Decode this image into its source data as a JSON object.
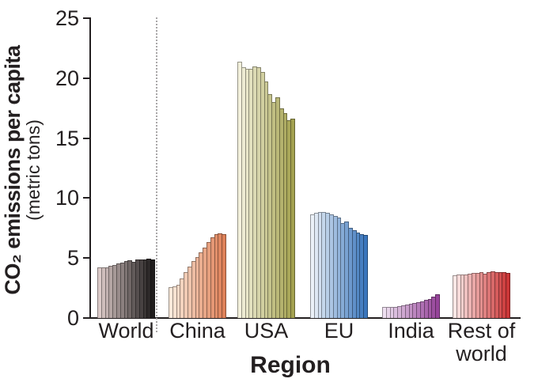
{
  "y_axis": {
    "title_line1": "CO₂ emissions per capita",
    "title_line2": "(metric tons)",
    "ticks": [
      0,
      5,
      10,
      15,
      20,
      25
    ]
  },
  "x_axis": {
    "title": "Region"
  },
  "chart_data": {
    "type": "bar",
    "title": "",
    "xlabel": "Region",
    "ylabel": "CO₂ emissions per capita (metric tons)",
    "ylim": [
      0,
      25
    ],
    "y_ticks": [
      0,
      5,
      10,
      15,
      20,
      25
    ],
    "grid": false,
    "legend": false,
    "bars_per_group": 15,
    "separator": {
      "style": "vertical-dotted-line",
      "position": "between World and China groups"
    },
    "bar_style": "each group is a sequence of thin yearly bars shaded light-to-dark left-to-right",
    "groups": [
      {
        "label": "World",
        "color_start": "#dccac8",
        "color_end": "#1f1d1d",
        "values": [
          4.2,
          4.2,
          4.25,
          4.35,
          4.45,
          4.55,
          4.65,
          4.75,
          4.8,
          4.7,
          4.85,
          4.9,
          4.9,
          4.95,
          4.85
        ]
      },
      {
        "label": "China",
        "color_start": "#f9e9da",
        "color_end": "#de8159",
        "values": [
          2.55,
          2.65,
          2.8,
          3.3,
          3.8,
          4.3,
          4.75,
          5.1,
          5.45,
          5.85,
          6.3,
          6.7,
          7.0,
          7.05,
          7.0
        ]
      },
      {
        "label": "USA",
        "color_start": "#f3f1dc",
        "color_end": "#a3a150",
        "values": [
          21.4,
          20.9,
          20.8,
          20.8,
          21.0,
          20.9,
          20.5,
          19.7,
          18.7,
          18.0,
          18.4,
          17.5,
          17.1,
          16.5,
          16.6
        ]
      },
      {
        "label": "EU",
        "color_start": "#ebf1f8",
        "color_end": "#3a76bd",
        "values": [
          8.65,
          8.8,
          8.85,
          8.85,
          8.8,
          8.65,
          8.5,
          8.4,
          7.9,
          8.05,
          7.5,
          7.3,
          7.1,
          7.0,
          6.9
        ]
      },
      {
        "label": "India",
        "color_start": "#eedff0",
        "color_end": "#96449a",
        "values": [
          0.9,
          0.9,
          0.92,
          0.95,
          1.0,
          1.05,
          1.1,
          1.2,
          1.25,
          1.35,
          1.4,
          1.5,
          1.6,
          1.75,
          2.0
        ]
      },
      {
        "label": "Rest of world",
        "color_start": "#f9e7e5",
        "color_end": "#cb3637",
        "values": [
          3.55,
          3.6,
          3.6,
          3.65,
          3.7,
          3.75,
          3.75,
          3.8,
          3.7,
          3.85,
          3.9,
          3.85,
          3.8,
          3.8,
          3.75
        ]
      }
    ]
  }
}
